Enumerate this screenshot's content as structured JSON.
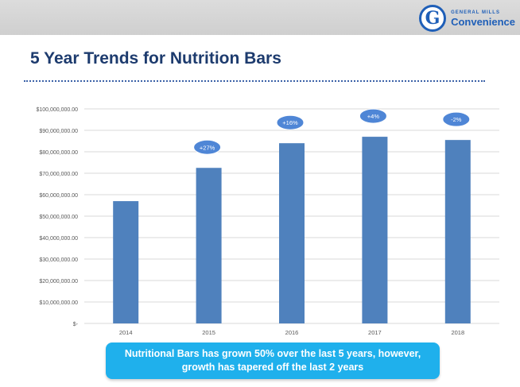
{
  "logo": {
    "brand_small": "GENERAL MILLS",
    "brand_large": "Convenience",
    "mark": "G"
  },
  "title": "5 Year Trends for Nutrition Bars",
  "callout": {
    "line1": "Nutritional Bars has grown 50% over the last 5 years, however,",
    "line2": "growth has tapered off the last 2 years"
  },
  "chart_data": {
    "type": "bar",
    "categories": [
      "2014",
      "2015",
      "2016",
      "2017",
      "2018"
    ],
    "values": [
      57000000,
      72500000,
      84000000,
      87000000,
      85500000
    ],
    "growth_labels": [
      "",
      "+27%",
      "+16%",
      "+4%",
      "-2%"
    ],
    "ylim": [
      0,
      100000000
    ],
    "yticks": [
      0,
      10000000,
      20000000,
      30000000,
      40000000,
      50000000,
      60000000,
      70000000,
      80000000,
      90000000,
      100000000
    ],
    "ytick_labels": [
      "$-",
      "$10,000,000.00",
      "$20,000,000.00",
      "$30,000,000.00",
      "$40,000,000.00",
      "$50,000,000.00",
      "$60,000,000.00",
      "$70,000,000.00",
      "$80,000,000.00",
      "$90,000,000.00",
      "$100,000,000.00"
    ],
    "grid": true,
    "bar_color": "#4f81bd",
    "bubble_color": "#4f86d6"
  }
}
